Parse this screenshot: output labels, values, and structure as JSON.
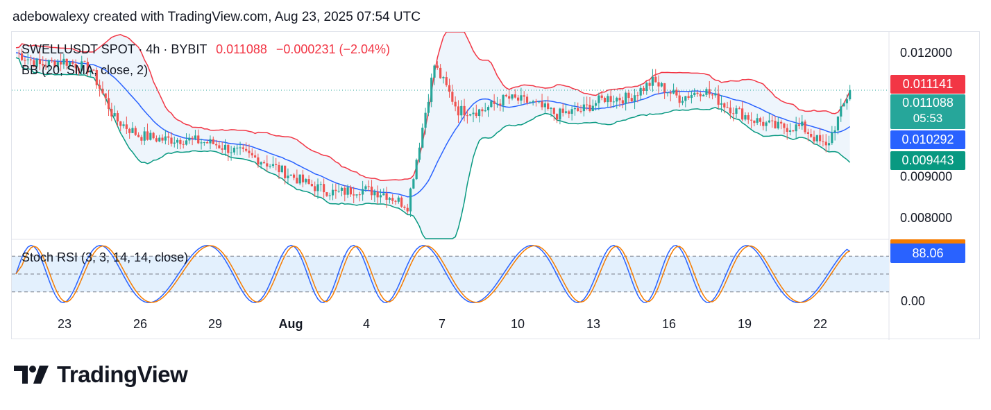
{
  "attribution": "adebowalexy created with TradingView.com, Aug 23, 2025 07:54 UTC",
  "legend": {
    "symbol": "SWELLUSDT SPOT · 4h · BYBIT",
    "last": "0.011088",
    "change": "−0.000231 (−2.04%)"
  },
  "bb_label": "BB (20, SMA, close, 2)",
  "rsi_label": "Stoch RSI (3, 3, 14, 14, close)",
  "price_tags": {
    "upper": "0.011141",
    "last": "0.011088",
    "countdown": "05:53",
    "basis": "0.010292",
    "lower": "0.009443",
    "rsi": "88.06"
  },
  "brand": "TradingView",
  "colors": {
    "up": "#26a69a",
    "down": "#ef5350",
    "bb_upper": "#f23645",
    "bb_basis": "#2962ff",
    "bb_lower": "#089981",
    "bb_fill": "#eef5fc",
    "rsi_k": "#2962ff",
    "rsi_d": "#f57c00",
    "rsi_band": "#e3f0fd"
  },
  "chart_data": [
    {
      "type": "candlestick",
      "series_name": "SWELLUSDT SPOT 4h BYBIT",
      "x_ticks": [
        "23",
        "26",
        "29",
        "Aug",
        "4",
        "7",
        "10",
        "13",
        "16",
        "19",
        "22"
      ],
      "y_ticks": [
        "0.012000",
        "0.009000",
        "0.008000"
      ],
      "ylim": [
        0.0075,
        0.0125
      ],
      "points": [
        [
          "Jul 21",
          0.012
        ],
        [
          "Jul 22",
          0.0117
        ],
        [
          "Jul 23",
          0.0118
        ],
        [
          "Jul 24",
          0.0116
        ],
        [
          "Jul 25",
          0.0104
        ],
        [
          "Jul 26",
          0.01
        ],
        [
          "Jul 27",
          0.0099
        ],
        [
          "Jul 28",
          0.0099
        ],
        [
          "Jul 29",
          0.0098
        ],
        [
          "Jul 30",
          0.0096
        ],
        [
          "Jul 31",
          0.0094
        ],
        [
          "Aug 1",
          0.0091
        ],
        [
          "Aug 2",
          0.0088
        ],
        [
          "Aug 3",
          0.0086
        ],
        [
          "Aug 4",
          0.0087
        ],
        [
          "Aug 5",
          0.0086
        ],
        [
          "Aug 6",
          0.0083
        ],
        [
          "Aug 6b",
          0.0117
        ],
        [
          "Aug 7",
          0.0106
        ],
        [
          "Aug 8",
          0.0106
        ],
        [
          "Aug 9",
          0.0109
        ],
        [
          "Aug 10",
          0.0108
        ],
        [
          "Aug 11",
          0.0105
        ],
        [
          "Aug 12",
          0.0106
        ],
        [
          "Aug 13",
          0.0109
        ],
        [
          "Aug 14",
          0.0109
        ],
        [
          "Aug 15",
          0.0113
        ],
        [
          "Aug 16",
          0.0109
        ],
        [
          "Aug 17",
          0.0111
        ],
        [
          "Aug 18",
          0.0107
        ],
        [
          "Aug 19",
          0.0104
        ],
        [
          "Aug 20",
          0.0102
        ],
        [
          "Aug 21",
          0.0102
        ],
        [
          "Aug 22",
          0.0097
        ],
        [
          "Aug 23",
          0.01109
        ]
      ]
    },
    {
      "type": "line",
      "series_name": "Stoch RSI",
      "y_ticks": [
        "0.00"
      ],
      "ylim": [
        0,
        100
      ],
      "bands": [
        20,
        50,
        80
      ],
      "last": 88.06
    }
  ]
}
